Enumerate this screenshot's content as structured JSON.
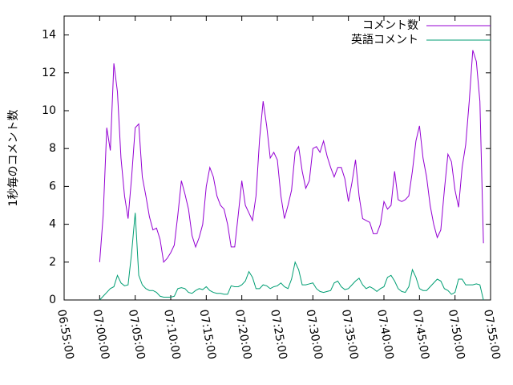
{
  "chart_data": {
    "type": "line",
    "ylabel": "1秒毎のコメント数",
    "legend": "top-right",
    "xlim": [
      "06:55:00",
      "07:55:00"
    ],
    "xticks": [
      "06:55:00",
      "07:00:00",
      "07:05:00",
      "07:10:00",
      "07:15:00",
      "07:20:00",
      "07:25:00",
      "07:30:00",
      "07:35:00",
      "07:40:00",
      "07:45:00",
      "07:50:00",
      "07:55:00"
    ],
    "ylim": [
      0,
      15
    ],
    "yticks": [
      0,
      2,
      4,
      6,
      8,
      10,
      12,
      14
    ],
    "x": [
      "07:00:00",
      "07:00:30",
      "07:01:00",
      "07:01:30",
      "07:02:00",
      "07:02:30",
      "07:03:00",
      "07:03:30",
      "07:04:00",
      "07:04:30",
      "07:05:00",
      "07:05:30",
      "07:06:00",
      "07:06:30",
      "07:07:00",
      "07:07:30",
      "07:08:00",
      "07:08:30",
      "07:09:00",
      "07:09:30",
      "07:10:00",
      "07:10:30",
      "07:11:00",
      "07:11:30",
      "07:12:00",
      "07:12:30",
      "07:13:00",
      "07:13:30",
      "07:14:00",
      "07:14:30",
      "07:15:00",
      "07:15:30",
      "07:16:00",
      "07:16:30",
      "07:17:00",
      "07:17:30",
      "07:18:00",
      "07:18:30",
      "07:19:00",
      "07:19:30",
      "07:20:00",
      "07:20:30",
      "07:21:00",
      "07:21:30",
      "07:22:00",
      "07:22:30",
      "07:23:00",
      "07:23:30",
      "07:24:00",
      "07:24:30",
      "07:25:00",
      "07:25:30",
      "07:26:00",
      "07:26:30",
      "07:27:00",
      "07:27:30",
      "07:28:00",
      "07:28:30",
      "07:29:00",
      "07:29:30",
      "07:30:00",
      "07:30:30",
      "07:31:00",
      "07:31:30",
      "07:32:00",
      "07:32:30",
      "07:33:00",
      "07:33:30",
      "07:34:00",
      "07:34:30",
      "07:35:00",
      "07:35:30",
      "07:36:00",
      "07:36:30",
      "07:37:00",
      "07:37:30",
      "07:38:00",
      "07:38:30",
      "07:39:00",
      "07:39:30",
      "07:40:00",
      "07:40:30",
      "07:41:00",
      "07:41:30",
      "07:42:00",
      "07:42:30",
      "07:43:00",
      "07:43:30",
      "07:44:00",
      "07:44:30",
      "07:45:00",
      "07:45:30",
      "07:46:00",
      "07:46:30",
      "07:47:00",
      "07:47:30",
      "07:48:00",
      "07:48:30",
      "07:49:00",
      "07:49:30",
      "07:50:00",
      "07:50:30",
      "07:51:00",
      "07:51:30",
      "07:52:00",
      "07:52:30",
      "07:53:00",
      "07:53:30",
      "07:54:00"
    ],
    "series": [
      {
        "name": "コメント数",
        "color": "#9400d3",
        "values": [
          2.0,
          4.5,
          9.1,
          7.9,
          12.5,
          11.0,
          7.5,
          5.5,
          4.3,
          6.5,
          9.1,
          9.3,
          6.5,
          5.5,
          4.4,
          3.7,
          3.8,
          3.2,
          2.0,
          2.2,
          2.5,
          2.9,
          4.5,
          6.3,
          5.6,
          4.8,
          3.4,
          2.8,
          3.3,
          4.0,
          6.0,
          7.0,
          6.5,
          5.5,
          5.0,
          4.8,
          4.0,
          2.8,
          2.8,
          4.5,
          6.3,
          5.0,
          4.6,
          4.2,
          5.5,
          8.5,
          10.5,
          9.2,
          7.5,
          7.8,
          7.4,
          5.5,
          4.3,
          5.0,
          5.8,
          7.8,
          8.1,
          6.8,
          5.9,
          6.3,
          8.0,
          8.1,
          7.8,
          8.4,
          7.6,
          7.0,
          6.5,
          7.0,
          7.0,
          6.4,
          5.2,
          6.2,
          7.4,
          5.5,
          4.3,
          4.2,
          4.1,
          3.5,
          3.5,
          4.0,
          5.2,
          4.8,
          5.0,
          6.8,
          5.3,
          5.2,
          5.3,
          5.5,
          6.8,
          8.4,
          9.2,
          7.5,
          6.5,
          5.0,
          4.0,
          3.3,
          3.7,
          5.8,
          7.7,
          7.3,
          5.8,
          4.9,
          7.0,
          8.2,
          10.5,
          13.2,
          12.6,
          10.5,
          3.0
        ]
      },
      {
        "name": "英語コメント",
        "color": "#009e73",
        "values": [
          0.0,
          0.2,
          0.4,
          0.6,
          0.7,
          1.3,
          0.9,
          0.75,
          0.8,
          2.5,
          4.6,
          1.3,
          0.8,
          0.6,
          0.5,
          0.5,
          0.4,
          0.2,
          0.15,
          0.15,
          0.15,
          0.2,
          0.6,
          0.65,
          0.6,
          0.4,
          0.35,
          0.5,
          0.6,
          0.55,
          0.7,
          0.5,
          0.4,
          0.35,
          0.35,
          0.3,
          0.3,
          0.75,
          0.7,
          0.7,
          0.8,
          1.0,
          1.5,
          1.2,
          0.6,
          0.6,
          0.8,
          0.75,
          0.6,
          0.7,
          0.75,
          0.9,
          0.7,
          0.6,
          1.1,
          2.0,
          1.6,
          0.8,
          0.8,
          0.85,
          0.9,
          0.6,
          0.45,
          0.4,
          0.45,
          0.5,
          0.9,
          1.0,
          0.7,
          0.55,
          0.6,
          0.8,
          1.0,
          1.15,
          0.8,
          0.6,
          0.7,
          0.6,
          0.45,
          0.6,
          0.7,
          1.2,
          1.3,
          1.0,
          0.6,
          0.45,
          0.4,
          0.7,
          1.6,
          1.2,
          0.6,
          0.5,
          0.5,
          0.7,
          0.9,
          1.1,
          1.0,
          0.6,
          0.5,
          0.3,
          0.4,
          1.1,
          1.1,
          0.8,
          0.8,
          0.8,
          0.85,
          0.8,
          0.0
        ]
      }
    ]
  }
}
